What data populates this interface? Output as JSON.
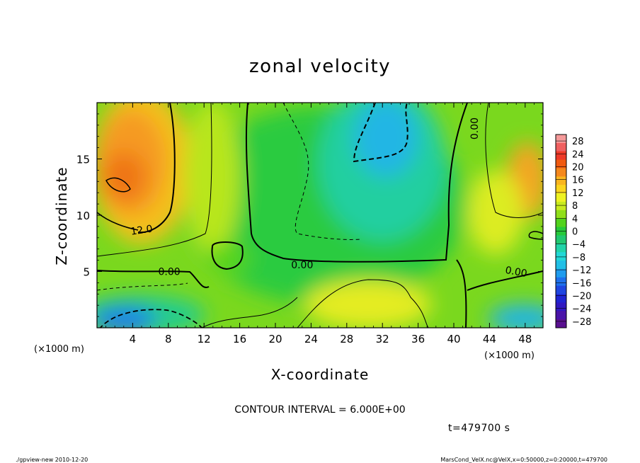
{
  "chart_data": {
    "type": "heatmap",
    "title": "zonal velocity",
    "xlabel": "X-coordinate",
    "ylabel": "Z-coordinate",
    "x_unit_note": "(×1000 m)",
    "x_unit_note_right": "(×1000 m)",
    "xlim": [
      0,
      50
    ],
    "ylim": [
      0,
      20
    ],
    "xticks": [
      "4",
      "8",
      "12",
      "16",
      "20",
      "24",
      "28",
      "32",
      "36",
      "40",
      "44",
      "48"
    ],
    "xtick_values": [
      4,
      8,
      12,
      16,
      20,
      24,
      28,
      32,
      36,
      40,
      44,
      48
    ],
    "yticks": [
      "5",
      "10",
      "15"
    ],
    "ytick_values": [
      5,
      10,
      15
    ],
    "contour_labels": [
      {
        "text": "12.0",
        "x": 5.0,
        "z": 8.7,
        "angle": 8
      },
      {
        "text": "0.00",
        "x": 8.1,
        "z": 5.0,
        "angle": 0
      },
      {
        "text": "0.00",
        "x": 23.0,
        "z": 5.6,
        "angle": 0
      },
      {
        "text": "0.00",
        "x": 47.0,
        "z": 5.0,
        "angle": -10
      },
      {
        "text": "0.00",
        "x": 42.3,
        "z": 17.7,
        "angle": 90
      }
    ],
    "colorbar": {
      "labels": [
        "28",
        "24",
        "20",
        "16",
        "12",
        "8",
        "4",
        "0",
        "−4",
        "−8",
        "−12",
        "−16",
        "−20",
        "−24",
        "−28"
      ],
      "values": [
        28,
        24,
        20,
        16,
        12,
        8,
        4,
        0,
        -4,
        -8,
        -12,
        -16,
        -20,
        -24,
        -28
      ],
      "range": [
        -30,
        30
      ],
      "colors": [
        "#f59a9a",
        "#f06060",
        "#ee3a28",
        "#f05a10",
        "#f5881c",
        "#f9b51e",
        "#fbd51d",
        "#eef222",
        "#c8ea1e",
        "#90df1a",
        "#52d31c",
        "#27c93a",
        "#22c870",
        "#22d4a8",
        "#22d8d6",
        "#21bfe6",
        "#1f9cee",
        "#1e70ec",
        "#1f46e0",
        "#1f24d2",
        "#3018c0",
        "#4a14a8",
        "#5a1090"
      ]
    },
    "contour_interval": "CONTOUR INTERVAL = 6.000E+00",
    "time_label": "t=479700 s",
    "footer_left": "./gpview-new  2010-12-20",
    "footer_right": "MarsCond_VelX.nc@VelX,x=0:50000,z=0:20000,t=479700"
  }
}
